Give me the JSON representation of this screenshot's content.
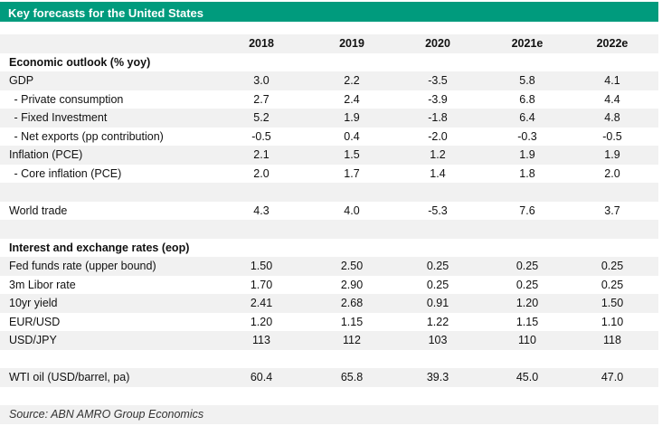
{
  "header": {
    "title": "Key forecasts for the United States"
  },
  "table": {
    "columns": [
      "2018",
      "2019",
      "2020",
      "2021e",
      "2022e"
    ],
    "groups": [
      {
        "title": "Economic outlook  (% yoy)",
        "rows": [
          {
            "label": "GDP",
            "values": [
              "3.0",
              "2.2",
              "-3.5",
              "5.8",
              "4.1"
            ]
          },
          {
            "label": " - Private consumption",
            "values": [
              "2.7",
              "2.4",
              "-3.9",
              "6.8",
              "4.4"
            ]
          },
          {
            "label": " - Fixed Investment",
            "values": [
              "5.2",
              "1.9",
              "-1.8",
              "6.4",
              "4.8"
            ]
          },
          {
            "label": " - Net exports (pp contribution)",
            "values": [
              "-0.5",
              "0.4",
              "-2.0",
              "-0.3",
              "-0.5"
            ]
          },
          {
            "label": "Inflation (PCE)",
            "values": [
              "2.1",
              "1.5",
              "1.2",
              "1.9",
              "1.9"
            ]
          },
          {
            "label": " - Core inflation (PCE)",
            "values": [
              "2.0",
              "1.7",
              "1.4",
              "1.8",
              "2.0"
            ]
          }
        ]
      },
      {
        "rows": [
          {
            "label": "World trade",
            "values": [
              "4.3",
              "4.0",
              "-5.3",
              "7.6",
              "3.7"
            ]
          }
        ]
      },
      {
        "title": "Interest and exchange rates (eop)",
        "rows": [
          {
            "label": "Fed funds rate (upper bound)",
            "values": [
              "1.50",
              "2.50",
              "0.25",
              "0.25",
              "0.25"
            ]
          },
          {
            "label": "3m Libor rate",
            "values": [
              "1.70",
              "2.90",
              "0.25",
              "0.25",
              "0.25"
            ]
          },
          {
            "label": "10yr yield",
            "values": [
              "2.41",
              "2.68",
              "0.91",
              "1.20",
              "1.50"
            ]
          },
          {
            "label": "EUR/USD",
            "values": [
              "1.20",
              "1.15",
              "1.22",
              "1.15",
              "1.10"
            ]
          },
          {
            "label": "USD/JPY",
            "values": [
              "113",
              "112",
              "103",
              "110",
              "118"
            ]
          }
        ]
      },
      {
        "rows": [
          {
            "label": "WTI oil (USD/barrel, pa)",
            "values": [
              "60.4",
              "65.8",
              "39.3",
              "45.0",
              "47.0"
            ]
          }
        ]
      }
    ]
  },
  "footer": {
    "source": "Source: ABN AMRO Group Economics"
  }
}
